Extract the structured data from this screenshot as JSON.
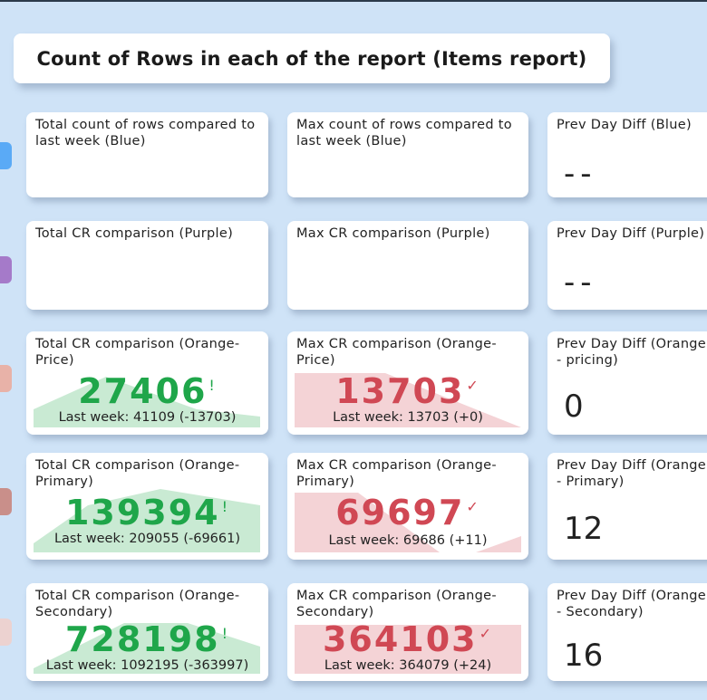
{
  "title": "Count of Rows in each of the report (Items report)",
  "colors": {
    "background": "#cfe3f7",
    "marker_blue": "#5aaaf6",
    "marker_purple": "#a57ac9",
    "marker_orange_price": "#e8b2a8",
    "marker_orange_primary": "#c98f8a",
    "marker_orange_secondary": "#ecd2d0",
    "positive": "#1fa64a",
    "negative": "#d04854"
  },
  "rows": [
    {
      "total_title": "Total count of rows compared to last week (Blue)",
      "max_title": "Max count of rows compared to last week (Blue)",
      "diff_title": "Prev Day Diff (Blue)",
      "diff_value": "--"
    },
    {
      "total_title": "Total CR comparison (Purple)",
      "max_title": "Max CR comparison (Purple)",
      "diff_title": "Prev Day Diff (Purple)",
      "diff_value": "--"
    },
    {
      "total_title": "Total CR comparison (Orange-Price)",
      "total_value": "27406",
      "total_mark": "!",
      "total_lastweek": "Last week: 41109 (-13703)",
      "max_title": "Max CR comparison (Orange-Price)",
      "max_value": "13703",
      "max_mark": "✓",
      "max_lastweek": "Last week: 13703 (+0)",
      "diff_title": "Prev Day Diff (Orange - pricing)",
      "diff_value": "0"
    },
    {
      "total_title": "Total CR comparison (Orange-Primary)",
      "total_value": "139394",
      "total_mark": "!",
      "total_lastweek": "Last week: 209055 (-69661)",
      "max_title": "Max CR comparison (Orange-Primary)",
      "max_value": "69697",
      "max_mark": "✓",
      "max_lastweek": "Last week: 69686 (+11)",
      "diff_title": "Prev Day Diff (Orange - Primary)",
      "diff_value": "12"
    },
    {
      "total_title": "Total CR comparison (Orange-Secondary)",
      "total_value": "728198",
      "total_mark": "!",
      "total_lastweek": "Last week: 1092195 (-363997)",
      "max_title": "Max CR comparison (Orange-Secondary)",
      "max_value": "364103",
      "max_mark": "✓",
      "max_lastweek": "Last week: 364079 (+24)",
      "diff_title": "Prev Day Diff (Orange - Secondary)",
      "diff_value": "16"
    }
  ]
}
